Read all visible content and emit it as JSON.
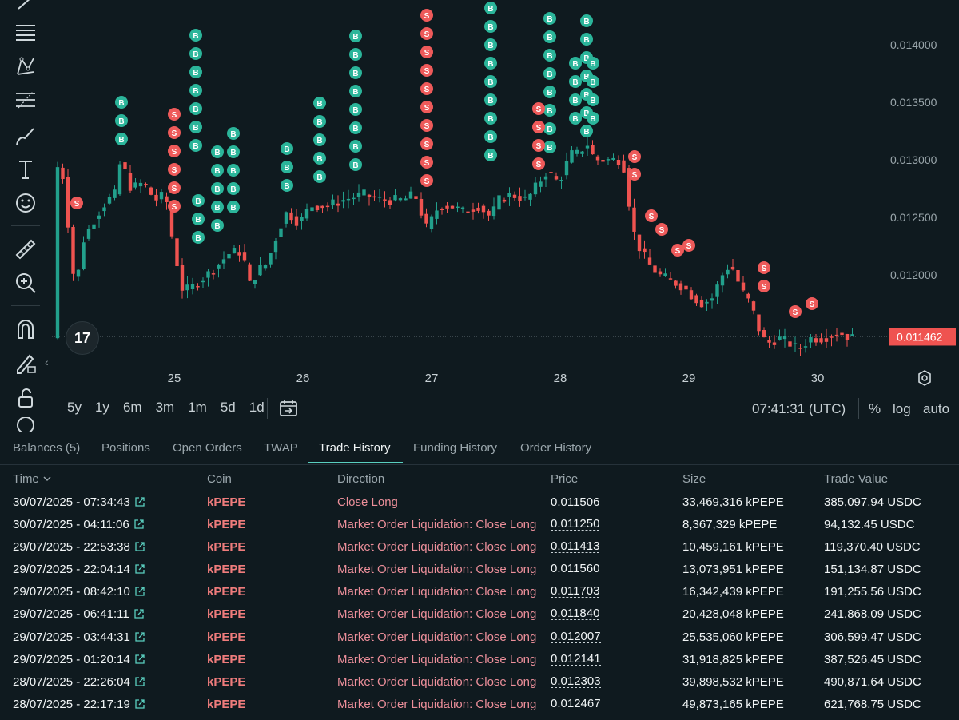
{
  "chart": {
    "y_ticks": [
      "0.014000",
      "0.013500",
      "0.013000",
      "0.012500",
      "0.012000"
    ],
    "x_ticks": [
      "25",
      "26",
      "27",
      "28",
      "29",
      "30"
    ],
    "current_price": "0.011462",
    "colors": {
      "up": "#22a08c",
      "down": "#ef5350",
      "buy": "#2bb59a",
      "sell": "#ee5a5a",
      "price_tag": "#ef5350"
    }
  },
  "tv_logo": "17",
  "ranges": [
    "5y",
    "1y",
    "6m",
    "3m",
    "1m",
    "5d",
    "1d"
  ],
  "clock": "07:41:31 (UTC)",
  "scale_opts": {
    "percent": "%",
    "log": "log",
    "auto": "auto"
  },
  "tabs": [
    {
      "label": "Balances (5)"
    },
    {
      "label": "Positions"
    },
    {
      "label": "Open Orders"
    },
    {
      "label": "TWAP"
    },
    {
      "label": "Trade History"
    },
    {
      "label": "Funding History"
    },
    {
      "label": "Order History"
    }
  ],
  "table": {
    "headers": {
      "time": "Time",
      "coin": "Coin",
      "direction": "Direction",
      "price": "Price",
      "size": "Size",
      "value": "Trade Value"
    },
    "rows": [
      {
        "time": "30/07/2025 - 07:34:43",
        "coin": "kPEPE",
        "direction": "Close Long",
        "price": "0.011506",
        "size": "33,469,316 kPEPE",
        "value": "385,097.94 USDC"
      },
      {
        "time": "30/07/2025 - 04:11:06",
        "coin": "kPEPE",
        "direction": "Market Order Liquidation: Close Long",
        "price": "0.011250",
        "size": "8,367,329 kPEPE",
        "value": "94,132.45 USDC"
      },
      {
        "time": "29/07/2025 - 22:53:38",
        "coin": "kPEPE",
        "direction": "Market Order Liquidation: Close Long",
        "price": "0.011413",
        "size": "10,459,161 kPEPE",
        "value": "119,370.40 USDC"
      },
      {
        "time": "29/07/2025 - 22:04:14",
        "coin": "kPEPE",
        "direction": "Market Order Liquidation: Close Long",
        "price": "0.011560",
        "size": "13,073,951 kPEPE",
        "value": "151,134.87 USDC"
      },
      {
        "time": "29/07/2025 - 08:42:10",
        "coin": "kPEPE",
        "direction": "Market Order Liquidation: Close Long",
        "price": "0.011703",
        "size": "16,342,439 kPEPE",
        "value": "191,255.56 USDC"
      },
      {
        "time": "29/07/2025 - 06:41:11",
        "coin": "kPEPE",
        "direction": "Market Order Liquidation: Close Long",
        "price": "0.011840",
        "size": "20,428,048 kPEPE",
        "value": "241,868.09 USDC"
      },
      {
        "time": "29/07/2025 - 03:44:31",
        "coin": "kPEPE",
        "direction": "Market Order Liquidation: Close Long",
        "price": "0.012007",
        "size": "25,535,060 kPEPE",
        "value": "306,599.47 USDC"
      },
      {
        "time": "29/07/2025 - 01:20:14",
        "coin": "kPEPE",
        "direction": "Market Order Liquidation: Close Long",
        "price": "0.012141",
        "size": "31,918,825 kPEPE",
        "value": "387,526.45 USDC"
      },
      {
        "time": "28/07/2025 - 22:26:04",
        "coin": "kPEPE",
        "direction": "Market Order Liquidation: Close Long",
        "price": "0.012303",
        "size": "39,898,532 kPEPE",
        "value": "490,871.64 USDC"
      },
      {
        "time": "28/07/2025 - 22:17:19",
        "coin": "kPEPE",
        "direction": "Market Order Liquidation: Close Long",
        "price": "0.012467",
        "size": "49,873,165 kPEPE",
        "value": "621,768.75 USDC"
      }
    ]
  }
}
